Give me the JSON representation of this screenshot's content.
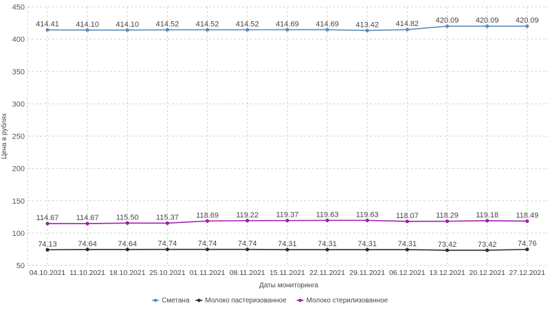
{
  "chart_data": {
    "type": "line",
    "title": "",
    "xlabel": "Даты мониторинга",
    "ylabel": "Цена в рублях",
    "ylim": [
      50,
      450
    ],
    "yticks": [
      50,
      100,
      150,
      200,
      250,
      300,
      350,
      400,
      450
    ],
    "grid": true,
    "legend_position": "bottom",
    "categories": [
      "04.10.2021",
      "11.10.2021",
      "18.10.2021",
      "25.10.2021",
      "01.11.2021",
      "08.11.2021",
      "15.11.2021",
      "22.11.2021",
      "29.11.2021",
      "06.12.2021",
      "13.12.2021",
      "20.12.2021",
      "27.12.2021"
    ],
    "series": [
      {
        "name": "Сметана",
        "color": "#5b8db8",
        "values": [
          414.41,
          414.1,
          414.1,
          414.52,
          414.52,
          414.52,
          414.69,
          414.69,
          413.42,
          414.82,
          420.09,
          420.09,
          420.09
        ],
        "labels": [
          "414.41",
          "414.10",
          "414.10",
          "414.52",
          "414.52",
          "414.52",
          "414.69",
          "414.69",
          "413.42",
          "414.82",
          "420.09",
          "420.09",
          "420.09"
        ]
      },
      {
        "name": "Молоко пастеризованное",
        "color": "#2b2b2b",
        "values": [
          74.13,
          74.64,
          74.64,
          74.74,
          74.74,
          74.74,
          74.31,
          74.31,
          74.31,
          74.31,
          73.42,
          73.42,
          74.76
        ],
        "labels": [
          "74.13",
          "74.64",
          "74.64",
          "74.74",
          "74.74",
          "74.74",
          "74.31",
          "74.31",
          "74.31",
          "74.31",
          "73.42",
          "73.42",
          "74.76"
        ]
      },
      {
        "name": "Молоко стерилизованное",
        "color": "#a21caf",
        "values": [
          114.67,
          114.67,
          115.5,
          115.37,
          118.69,
          119.22,
          119.37,
          119.63,
          119.63,
          118.07,
          118.29,
          119.18,
          118.49
        ],
        "labels": [
          "114.67",
          "114.67",
          "115.50",
          "115.37",
          "118.69",
          "119.22",
          "119.37",
          "119.63",
          "119.63",
          "118.07",
          "118.29",
          "119.18",
          "118.49"
        ]
      }
    ]
  }
}
